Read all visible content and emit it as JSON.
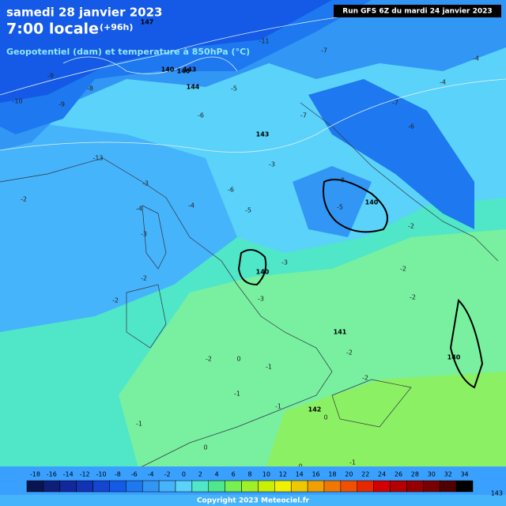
{
  "header": {
    "date": "samedi 28 janvier 2023",
    "time": "7:00 locale",
    "lead": "(+96h)",
    "parameter": "Geopotentiel (dam) et temperature à 850hPa (°C)",
    "run": "Run GFS 6Z du mardi 24 janvier 2023"
  },
  "map": {
    "contour_labels": [
      147,
      146,
      144,
      143,
      140,
      140,
      140,
      141,
      142,
      140,
      143
    ],
    "temperature_labels": [
      -9,
      -8,
      -9,
      -13,
      -10,
      -11,
      -7,
      -7,
      -4,
      -6,
      -6,
      -5,
      -4,
      -7,
      -3,
      -3,
      -2,
      -4,
      -3,
      -5,
      -6,
      -8,
      -5,
      -2,
      -2,
      -2,
      -3,
      -2,
      -2,
      -1,
      -1,
      -1,
      0,
      0,
      -1,
      0,
      -1,
      -2,
      -2,
      0,
      -1,
      -3,
      -2,
      -4
    ]
  },
  "legend": {
    "labels": [
      -18,
      -16,
      -14,
      -12,
      -10,
      -8,
      -6,
      -4,
      -2,
      0,
      2,
      4,
      6,
      8,
      10,
      12,
      14,
      16,
      18,
      20,
      22,
      24,
      26,
      28,
      30,
      32,
      34
    ],
    "colors": [
      "#0a1450",
      "#0f1e78",
      "#13289a",
      "#1432b4",
      "#1446d2",
      "#145ae6",
      "#1e78f0",
      "#3296f5",
      "#46b4fa",
      "#5ad2fa",
      "#50e6c8",
      "#50e68c",
      "#78f050",
      "#a0f028",
      "#c8f000",
      "#f0f000",
      "#f0c800",
      "#f0a000",
      "#f07800",
      "#f05000",
      "#e62800",
      "#d20000",
      "#b40000",
      "#960000",
      "#780000",
      "#500000",
      "#000000"
    ]
  },
  "footer": {
    "copyright": "Copyright 2023 Meteociel.fr",
    "corner": "143"
  }
}
